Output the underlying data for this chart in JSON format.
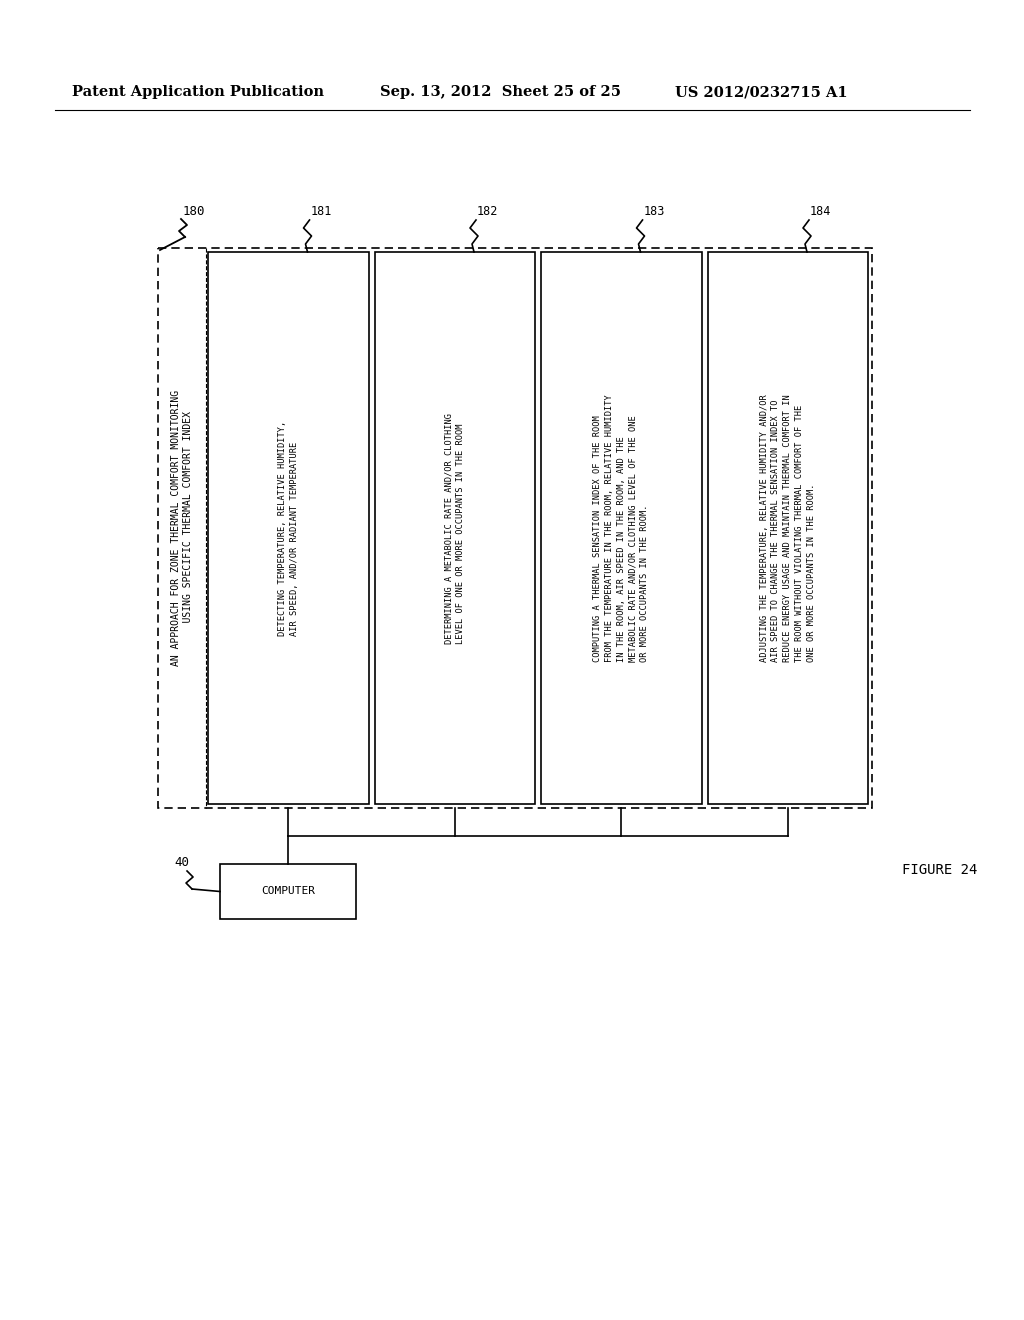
{
  "header_left": "Patent Application Publication",
  "header_mid": "Sep. 13, 2012  Sheet 25 of 25",
  "header_right": "US 2012/0232715 A1",
  "figure_label": "FIGURE 24",
  "outer_box_label": "180",
  "outer_text_line1": "AN APPROACH FOR ZONE THERMAL COMFORT MONITORING",
  "outer_text_line2": "    USING SPECIFIC THERMAL COMFORT INDEX",
  "boxes": [
    {
      "id": "181",
      "text": "DETECTING TEMPERATURE, RELATIVE HUMIDITY,\nAIR SPEED, AND/OR RADIANT TEMPERATURE"
    },
    {
      "id": "182",
      "text": "DETERMINING A METABOLIC RATE AND/OR CLOTHING\nLEVEL OF ONE OR MORE OCCUPANTS IN THE ROOM"
    },
    {
      "id": "183",
      "text": "COMPUTING A THERMAL SENSATION INDEX OF THE ROOM\nFROM THE TEMPERATURE IN THE ROOM, RELATIVE HUMIDITY\nIN THE ROOM, AIR SPEED IN THE ROOM, AND THE\nMETABOLIC RATE AND/OR CLOTHING LEVEL OF THE ONE\nOR MORE OCCUPANTS IN THE ROOM."
    },
    {
      "id": "184",
      "text": "ADJUSTING THE TEMPERATURE, RELATIVE HUMIDITY AND/OR\nAIR SPEED TO CHANGE THE THERMAL SENSATION INDEX TO\nREDUCE ENERGY USAGE AND MAINTAIN THERMAL COMFORT IN\nTHE ROOM WITHOUT VIOLATING THERMAL COMFORT OF THE\nONE OR MORE OCCUPANTS IN THE ROOM."
    }
  ],
  "computer_label": "40",
  "computer_text": "COMPUTER",
  "bg_color": "#ffffff",
  "text_color": "#000000",
  "line_color": "#000000"
}
